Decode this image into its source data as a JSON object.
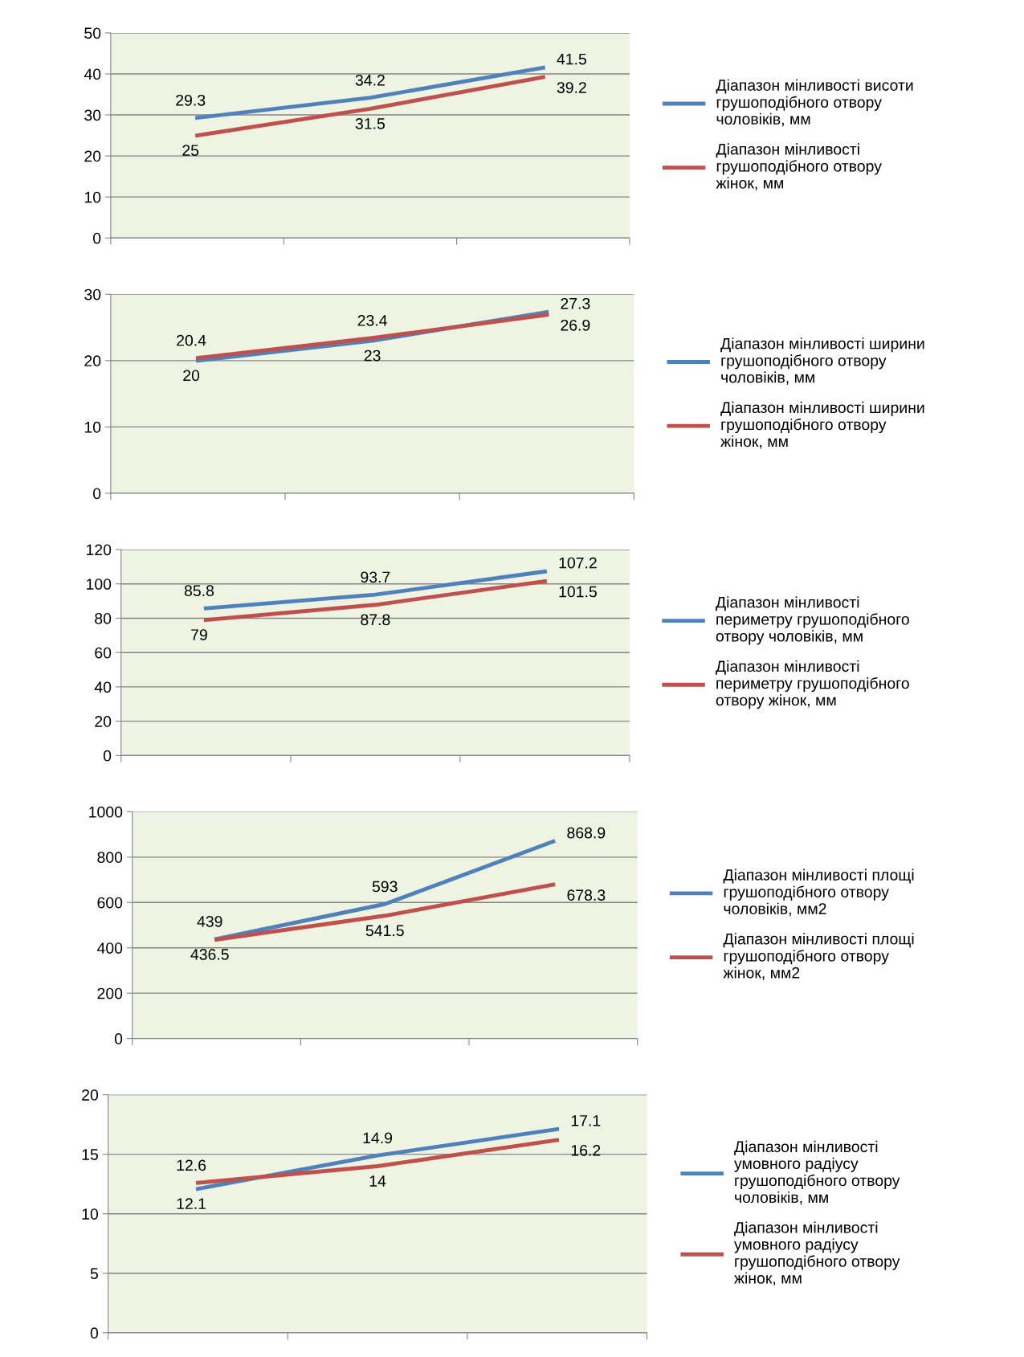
{
  "chart_data": [
    {
      "type": "line",
      "categories": [
        null,
        null,
        null
      ],
      "ylim": [
        0,
        50
      ],
      "yticks": [
        0,
        10,
        20,
        30,
        40,
        50
      ],
      "grid": "y",
      "legend": "right",
      "data_labels": true,
      "tick_labels": "y",
      "series": [
        {
          "name": "Діапазон мінливості висоти грушоподібного отвору чоловіків, мм",
          "color": "#4f81bd",
          "values": [
            29.3,
            34.2,
            41.5
          ]
        },
        {
          "name": "Діапазон мінливості грушоподібного отвору жінок, мм",
          "color": "#c0504d",
          "values": [
            25,
            31.5,
            39.2
          ]
        }
      ]
    },
    {
      "type": "line",
      "categories": [
        null,
        null,
        null
      ],
      "ylim": [
        0,
        30
      ],
      "yticks": [
        0,
        10,
        20,
        30
      ],
      "grid": "y",
      "legend": "right",
      "data_labels": true,
      "tick_labels": "y",
      "series": [
        {
          "name": "Діапазон мінливості ширини грушоподібного отвору чоловіків, мм",
          "color": "#4f81bd",
          "values": [
            20,
            23,
            27.3
          ]
        },
        {
          "name": "Діапазон мінливості ширини грушоподібного отвору жінок, мм",
          "color": "#c0504d",
          "values": [
            20.4,
            23.4,
            26.9
          ]
        }
      ]
    },
    {
      "type": "line",
      "categories": [
        null,
        null,
        null
      ],
      "ylim": [
        0,
        120
      ],
      "yticks": [
        0,
        20,
        40,
        60,
        80,
        100,
        120
      ],
      "grid": "y",
      "legend": "right",
      "data_labels": true,
      "tick_labels": "y",
      "series": [
        {
          "name": "Діапазон мінливості периметру грушоподібного отвору чоловіків, мм",
          "color": "#4f81bd",
          "values": [
            85.8,
            93.7,
            107.2
          ]
        },
        {
          "name": "Діапазон мінливості периметру грушоподібного отвору жінок, мм",
          "color": "#c0504d",
          "values": [
            79,
            87.8,
            101.5
          ]
        }
      ]
    },
    {
      "type": "line",
      "categories": [
        null,
        null,
        null
      ],
      "ylim": [
        0,
        1000
      ],
      "yticks": [
        0,
        200,
        400,
        600,
        800,
        1000
      ],
      "grid": "y",
      "legend": "right",
      "data_labels": true,
      "tick_labels": "y",
      "series": [
        {
          "name": "Діапазон мінливості площі грушоподібного отвору чоловіків, мм2",
          "color": "#4f81bd",
          "values": [
            439,
            593,
            868.9
          ]
        },
        {
          "name": "Діапазон мінливості площі грушоподібного отвору жінок, мм2",
          "color": "#c0504d",
          "values": [
            436.5,
            541.5,
            678.3
          ]
        }
      ]
    },
    {
      "type": "line",
      "categories": [
        null,
        null,
        null
      ],
      "ylim": [
        0,
        20
      ],
      "yticks": [
        0,
        5,
        10,
        15,
        20
      ],
      "grid": "y",
      "legend": "right",
      "data_labels": true,
      "tick_labels": "y",
      "series": [
        {
          "name": "Діапазон мінливості умовного радіусу грушоподібного отвору чоловіків, мм",
          "color": "#4f81bd",
          "values": [
            12.1,
            14.9,
            17.1
          ]
        },
        {
          "name": "Діапазон мінливості умовного радіусу грушоподібного отвору жінок, мм",
          "color": "#c0504d",
          "values": [
            12.6,
            14,
            16.2
          ]
        }
      ]
    }
  ]
}
